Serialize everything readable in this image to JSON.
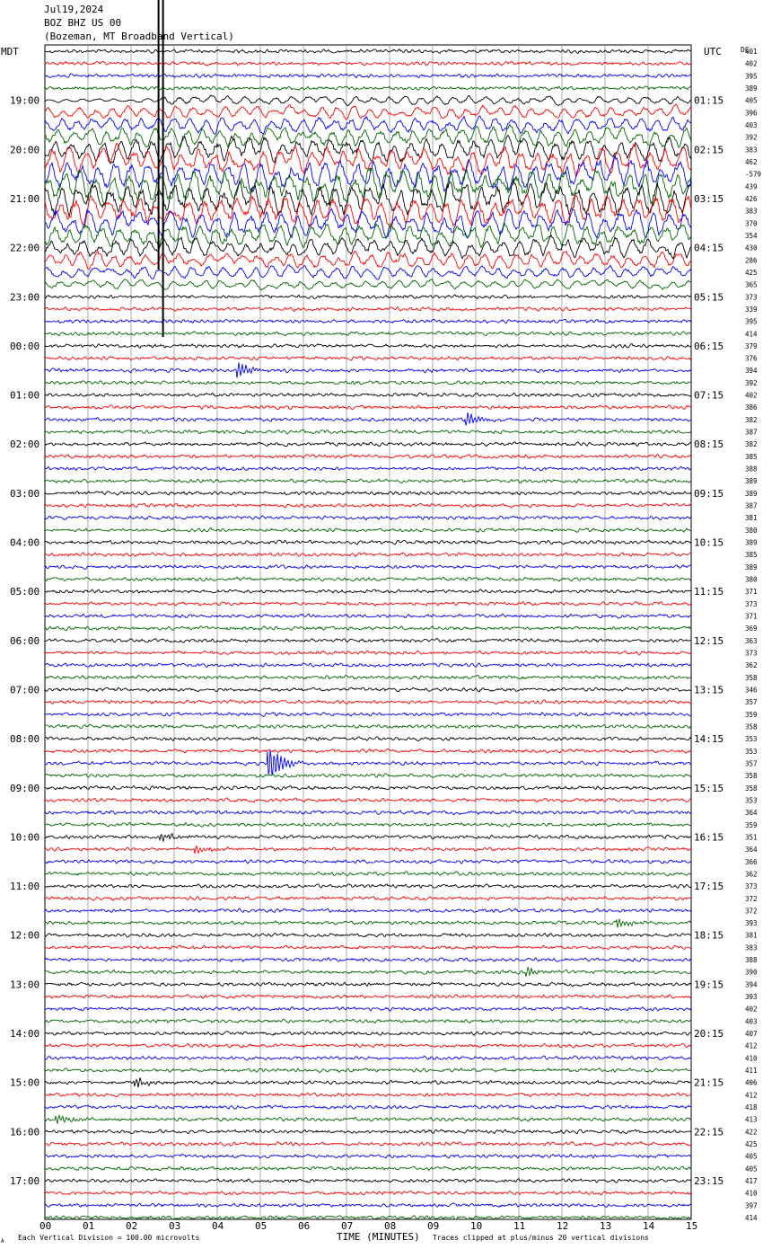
{
  "header": {
    "date": "Jul19,2024",
    "station": "BOZ BHZ US 00",
    "location": "(Bozeman, MT Broadband Vertical)"
  },
  "left_timezone": "MDT",
  "right_timezone": "UTC",
  "dc_label": "DC",
  "footer": {
    "scale_note": "Each Vertical Division =  100.00 microvolts",
    "clip_note": "Traces clipped at plus/minus 20 vertical divisions",
    "corner_mark": "A"
  },
  "chart_data": {
    "type": "helicorder",
    "xlabel": "TIME (MINUTES)",
    "x_ticks": [
      "00",
      "01",
      "02",
      "03",
      "04",
      "05",
      "06",
      "07",
      "08",
      "09",
      "10",
      "11",
      "12",
      "13",
      "14",
      "15"
    ],
    "xlim": [
      0,
      15
    ],
    "trace_colors": [
      "#000000",
      "#ff0000",
      "#0000ff",
      "#006600"
    ],
    "grid": true,
    "left_hour_labels": [
      "19:00",
      "20:00",
      "21:00",
      "22:00",
      "23:00",
      "00:00",
      "01:00",
      "02:00",
      "03:00",
      "04:00",
      "05:00",
      "06:00",
      "07:00",
      "08:00",
      "09:00",
      "10:00",
      "11:00",
      "12:00",
      "13:00",
      "14:00",
      "15:00",
      "16:00",
      "17:00"
    ],
    "right_hour_labels": [
      "01:15",
      "02:15",
      "03:15",
      "04:15",
      "05:15",
      "06:15",
      "07:15",
      "08:15",
      "09:15",
      "10:15",
      "11:15",
      "12:15",
      "13:15",
      "14:15",
      "15:15",
      "16:15",
      "17:15",
      "18:15",
      "19:15",
      "20:15",
      "21:15",
      "22:15",
      "23:15"
    ],
    "dc_offsets": [
      "401",
      "402",
      "395",
      "389",
      "405",
      "396",
      "403",
      "392",
      "383",
      "462",
      "-579",
      "439",
      "426",
      "383",
      "370",
      "354",
      "430",
      "286",
      "425",
      "365",
      "373",
      "339",
      "395",
      "414",
      "379",
      "376",
      "394",
      "392",
      "402",
      "386",
      "382",
      "387",
      "382",
      "385",
      "388",
      "389",
      "389",
      "387",
      "381",
      "380",
      "389",
      "385",
      "389",
      "380",
      "371",
      "373",
      "371",
      "369",
      "363",
      "373",
      "362",
      "358",
      "346",
      "357",
      "359",
      "358",
      "353",
      "353",
      "357",
      "358",
      "358",
      "353",
      "364",
      "359",
      "351",
      "364",
      "366",
      "362",
      "373",
      "372",
      "372",
      "393",
      "381",
      "383",
      "388",
      "390",
      "394",
      "393",
      "402",
      "403",
      "407",
      "412",
      "410",
      "411",
      "406",
      "412",
      "418",
      "413",
      "422",
      "425",
      "405",
      "405",
      "417",
      "410",
      "397",
      "414"
    ],
    "events": [
      {
        "trace": 26,
        "minute": 4.5,
        "amplitude": "medium"
      },
      {
        "trace": 30,
        "minute": 9.8,
        "amplitude": "medium"
      },
      {
        "trace": 58,
        "minute": 5.2,
        "amplitude": "large"
      },
      {
        "trace": 64,
        "minute": 2.7,
        "amplitude": "small"
      },
      {
        "trace": 65,
        "minute": 3.5,
        "amplitude": "small"
      },
      {
        "trace": 71,
        "minute": 13.3,
        "amplitude": "small"
      },
      {
        "trace": 75,
        "minute": 11.2,
        "amplitude": "small"
      },
      {
        "trace": 84,
        "minute": 2.1,
        "amplitude": "small"
      },
      {
        "trace": 87,
        "minute": 0.3,
        "amplitude": "small"
      }
    ],
    "teleseism": {
      "start_trace": 4,
      "end_trace": 19,
      "start_minute": 2.7
    }
  }
}
